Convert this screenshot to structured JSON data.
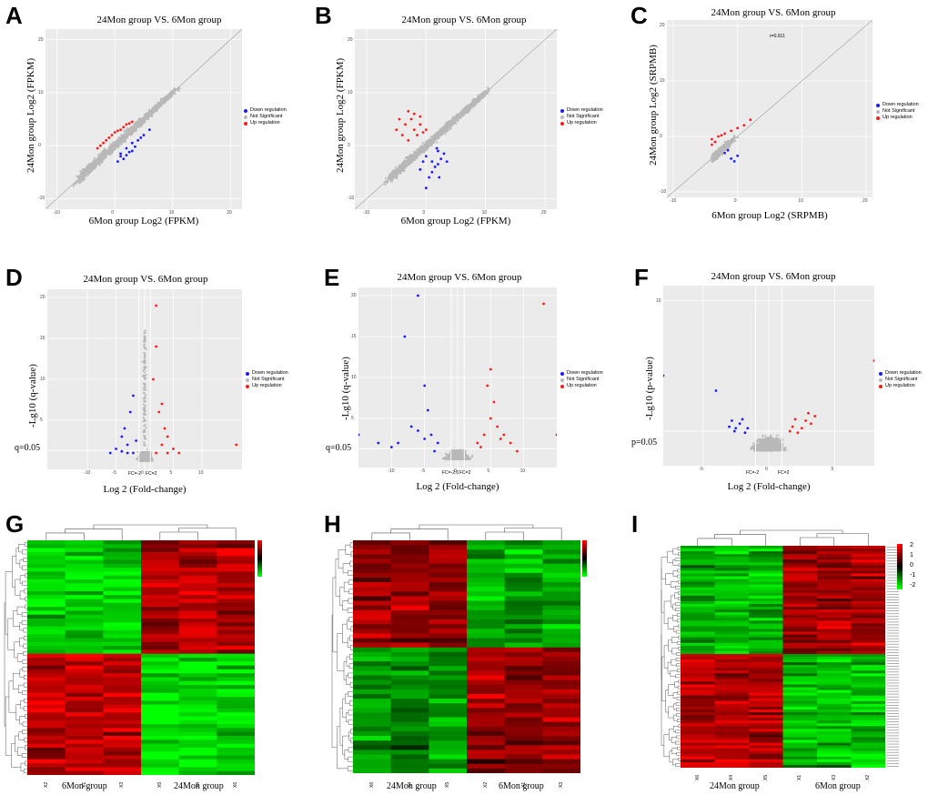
{
  "panels": {
    "A": {
      "label": "A",
      "title": "24Mon group VS. 6Mon group",
      "xlabel": "6Mon group Log2 (FPKM)",
      "ylabel": "24Mon group Log2 (FPKM)"
    },
    "B": {
      "label": "B",
      "title": "24Mon group VS. 6Mon group",
      "xlabel": "6Mon group Log2 (FPKM)",
      "ylabel": "24Mon group Log2 (FPKM)"
    },
    "C": {
      "label": "C",
      "title": "24Mon group VS. 6Mon group",
      "xlabel": "6Mon group Log2 (SRPMB)",
      "ylabel": "24Mon group Log2 (SRPMB)",
      "annotation": "r=0.911"
    },
    "D": {
      "label": "D",
      "title": "24Mon group VS. 6Mon group",
      "xlabel": "Log 2 (Fold-change)",
      "ylabel": "-Lg10 (q-value)",
      "threshold": "q=0.05",
      "fc_left": "FC=-2",
      "fc_right": "FC=2"
    },
    "E": {
      "label": "E",
      "title": "24Mon group VS. 6Mon group",
      "xlabel": "Log 2 (Fold-change)",
      "ylabel": "-Lg10 (q-value)",
      "threshold": "q=0.05",
      "fc_left": "FC=-2.0",
      "fc_right": "FC=2"
    },
    "F": {
      "label": "F",
      "title": "24Mon group VS. 6Mon group",
      "xlabel": "Log 2 (Fold-change)",
      "ylabel": "-Lg10 (p-value)",
      "threshold": "p=0.05",
      "fc_left": "FC=-2",
      "fc_right": "FC=2"
    },
    "G": {
      "label": "G",
      "group_left": "6Mon group",
      "group_right": "24Mon group",
      "samples": [
        "X2",
        "X1",
        "X3",
        "X5",
        "X4",
        "X6"
      ]
    },
    "H": {
      "label": "H",
      "group_left": "24Mon group",
      "group_right": "6Mon group",
      "samples": [
        "X6",
        "X4",
        "X5",
        "X2",
        "X1",
        "X3"
      ]
    },
    "I": {
      "label": "I",
      "group_left": "24Mon group",
      "group_right": "6Mon group",
      "samples": [
        "X6",
        "X4",
        "X5",
        "X1",
        "X3",
        "X2"
      ]
    }
  },
  "legend": {
    "down": "Down regulation",
    "ns": "Not Significant",
    "up": "Up regulation"
  },
  "colors": {
    "down": "#1a1aff",
    "ns": "#b8b8b8",
    "up": "#ff1a1a",
    "panel_bg": "#ebebeb",
    "grid": "#ffffff"
  },
  "chart_data": [
    {
      "id": "A",
      "type": "scatter",
      "title": "24Mon group VS. 6Mon group",
      "xlabel": "6Mon group Log2 (FPKM)",
      "ylabel": "24Mon group Log2 (FPKM)",
      "xlim": [
        -12,
        22
      ],
      "ylim": [
        -12,
        22
      ],
      "xticks": [
        -10,
        0,
        10,
        20
      ],
      "yticks": [
        -10,
        0,
        10,
        20
      ],
      "series": [
        {
          "name": "Down regulation",
          "points": [
            [
              1,
              -1.5
            ],
            [
              2,
              -0.5
            ],
            [
              3,
              0.5
            ],
            [
              2.5,
              -1.2
            ],
            [
              4,
              1
            ],
            [
              5,
              2
            ],
            [
              1.5,
              -2.5
            ],
            [
              3.5,
              -0.2
            ],
            [
              4.5,
              1.5
            ],
            [
              0.5,
              -3
            ],
            [
              2,
              -1.8
            ],
            [
              6,
              3
            ],
            [
              3,
              -1
            ],
            [
              1,
              -2
            ]
          ]
        },
        {
          "name": "Not Significant",
          "density": "diagonal cloud"
        },
        {
          "name": "Up regulation",
          "points": [
            [
              -2,
              0.5
            ],
            [
              -1,
              1.5
            ],
            [
              0,
              2.5
            ],
            [
              1,
              3
            ],
            [
              2,
              4
            ],
            [
              -3,
              -0.5
            ],
            [
              -0.5,
              2
            ],
            [
              0.5,
              2.8
            ],
            [
              3,
              4.5
            ],
            [
              -1.5,
              1
            ],
            [
              1.5,
              3.5
            ],
            [
              -2.5,
              0
            ],
            [
              2.5,
              4.2
            ]
          ]
        }
      ]
    },
    {
      "id": "B",
      "type": "scatter",
      "title": "24Mon group VS. 6Mon group",
      "xlabel": "6Mon group Log2 (FPKM)",
      "ylabel": "24Mon group Log2 (FPKM)",
      "xlim": [
        -12,
        22
      ],
      "ylim": [
        -12,
        22
      ],
      "xticks": [
        -10,
        0,
        10,
        20
      ],
      "yticks": [
        -10,
        0,
        10,
        20
      ],
      "series": [
        {
          "name": "Down regulation",
          "points": [
            [
              0,
              -2
            ],
            [
              1,
              -3
            ],
            [
              2,
              -1
            ],
            [
              1.5,
              -4
            ],
            [
              0.5,
              -6
            ],
            [
              2.5,
              -2.5
            ],
            [
              3,
              -1.5
            ],
            [
              -0.5,
              -3
            ],
            [
              1,
              -5
            ],
            [
              2,
              -3.5
            ],
            [
              0,
              -8
            ],
            [
              1.8,
              -0.5
            ],
            [
              3.5,
              -3
            ],
            [
              -1,
              -4.5
            ],
            [
              2.2,
              -6
            ]
          ]
        },
        {
          "name": "Not Significant",
          "density": "diagonal cloud"
        },
        {
          "name": "Up regulation",
          "points": [
            [
              -3,
              1
            ],
            [
              -2,
              3
            ],
            [
              -1,
              4
            ],
            [
              -4,
              2
            ],
            [
              -2.5,
              5
            ],
            [
              -1.5,
              2
            ],
            [
              -3.5,
              4
            ],
            [
              0,
              3
            ],
            [
              -2,
              6
            ],
            [
              -5,
              3
            ],
            [
              -1,
              5.5
            ],
            [
              -0.5,
              2.5
            ],
            [
              -3,
              6.5
            ],
            [
              -4.5,
              5
            ]
          ]
        }
      ]
    },
    {
      "id": "C",
      "type": "scatter",
      "title": "24Mon group VS. 6Mon group",
      "xlabel": "6Mon group Log2 (SRPMB)",
      "ylabel": "24Mon group Log2 (SRPMB)",
      "xlim": [
        -11,
        21
      ],
      "ylim": [
        -11,
        21
      ],
      "xticks": [
        -10,
        0,
        10,
        20
      ],
      "yticks": [
        -10,
        0,
        10,
        20
      ],
      "series": [
        {
          "name": "Down regulation",
          "points": [
            [
              -2,
              -3
            ],
            [
              -1,
              -4
            ],
            [
              0,
              -3.5
            ],
            [
              -1.5,
              -2.5
            ],
            [
              -0.5,
              -4.5
            ]
          ]
        },
        {
          "name": "Not Significant",
          "density": "diagonal cloud"
        },
        {
          "name": "Up regulation",
          "points": [
            [
              -4,
              -0.5
            ],
            [
              -3,
              0
            ],
            [
              -2,
              0.5
            ],
            [
              -3.5,
              -1
            ],
            [
              -1,
              1
            ],
            [
              0,
              1.5
            ],
            [
              1,
              2
            ],
            [
              -4,
              -1.5
            ],
            [
              -2.5,
              0.2
            ],
            [
              2,
              3
            ]
          ]
        }
      ]
    },
    {
      "id": "D",
      "type": "scatter",
      "title": "24Mon group VS. 6Mon group",
      "xlabel": "Log 2 (Fold-change)",
      "ylabel": "-Lg10 (q-value)",
      "xlim": [
        -17,
        17
      ],
      "ylim": [
        -1,
        21
      ],
      "xticks": [
        -10,
        -5,
        0,
        5,
        10
      ],
      "yticks": [
        5,
        10,
        15,
        20
      ],
      "series": [
        {
          "name": "Down regulation",
          "points": [
            [
              -2,
              1
            ],
            [
              -3,
              2
            ],
            [
              -4,
              3
            ],
            [
              -2.5,
              6
            ],
            [
              -3.5,
              4
            ],
            [
              -2,
              8
            ],
            [
              -5,
              1.5
            ],
            [
              -1.5,
              2.5
            ],
            [
              -3,
              1
            ],
            [
              -4,
              1.2
            ],
            [
              -6,
              1
            ]
          ]
        },
        {
          "name": "Not Significant",
          "density": "volcano cloud"
        },
        {
          "name": "Up regulation",
          "points": [
            [
              2,
              1
            ],
            [
              3,
              2
            ],
            [
              4,
              3
            ],
            [
              2.5,
              6
            ],
            [
              3.5,
              4
            ],
            [
              2,
              19
            ],
            [
              1.5,
              10
            ],
            [
              3,
              7
            ],
            [
              2,
              14
            ],
            [
              5,
              1.5
            ],
            [
              4,
              1
            ],
            [
              6,
              1
            ],
            [
              16,
              2
            ]
          ]
        }
      ]
    },
    {
      "id": "E",
      "type": "scatter",
      "title": "24Mon group VS. 6Mon group",
      "xlabel": "Log 2 (Fold-change)",
      "ylabel": "-Lg10 (q-value)",
      "xlim": [
        -15,
        15
      ],
      "ylim": [
        -1,
        21
      ],
      "xticks": [
        -10,
        -5,
        0,
        5,
        10
      ],
      "yticks": [
        5,
        10,
        15,
        20
      ],
      "series": [
        {
          "name": "Down regulation",
          "points": [
            [
              -6,
              20
            ],
            [
              -8,
              15
            ],
            [
              -5,
              9
            ],
            [
              -4,
              3
            ],
            [
              -6,
              3.5
            ],
            [
              -5,
              2.5
            ],
            [
              -3,
              2
            ],
            [
              -7,
              4
            ],
            [
              -9,
              2
            ],
            [
              -10,
              1.5
            ],
            [
              -4.5,
              6
            ],
            [
              -3.5,
              1
            ],
            [
              -12,
              2
            ],
            [
              -15,
              3
            ]
          ]
        },
        {
          "name": "Not Significant",
          "density": "volcano cloud"
        },
        {
          "name": "Up regulation",
          "points": [
            [
              4,
              3
            ],
            [
              5,
              5
            ],
            [
              6,
              4
            ],
            [
              4.5,
              9
            ],
            [
              5.5,
              7
            ],
            [
              3,
              2
            ],
            [
              7,
              3
            ],
            [
              8,
              2
            ],
            [
              6.5,
              2.5
            ],
            [
              3.5,
              1.5
            ],
            [
              9,
              1
            ],
            [
              13,
              19
            ],
            [
              15,
              3
            ],
            [
              5,
              11
            ]
          ]
        }
      ]
    },
    {
      "id": "F",
      "type": "scatter",
      "title": "24Mon group VS. 6Mon group",
      "xlabel": "Log 2 (Fold-change)",
      "ylabel": "-Lg10 (p-value)",
      "xlim": [
        -8,
        8
      ],
      "ylim": [
        -1,
        11
      ],
      "xticks": [
        -5,
        0,
        5
      ],
      "yticks": [
        10
      ],
      "series": [
        {
          "name": "Down regulation",
          "points": [
            [
              -4,
              4
            ],
            [
              -2.5,
              1.5
            ],
            [
              -2.8,
              2
            ],
            [
              -2.2,
              1.8
            ],
            [
              -1.8,
              1.2
            ],
            [
              -2.6,
              1.3
            ],
            [
              -2.0,
              2.1
            ],
            [
              -3,
              1.6
            ],
            [
              -1.6,
              1.5
            ],
            [
              -8,
              5
            ]
          ]
        },
        {
          "name": "Not Significant",
          "density": "volcano cloud"
        },
        {
          "name": "Up regulation",
          "points": [
            [
              2.5,
              1.5
            ],
            [
              2.8,
              2
            ],
            [
              3,
              2.5
            ],
            [
              3.2,
              1.8
            ],
            [
              2.2,
              1.2
            ],
            [
              1.8,
              1.6
            ],
            [
              3.5,
              2.3
            ],
            [
              2,
              2.1
            ],
            [
              1.6,
              1.3
            ],
            [
              8,
              6
            ]
          ]
        }
      ]
    },
    {
      "id": "G",
      "type": "heatmap",
      "xlabel": "6Mon group / 24Mon group",
      "colorscale": [
        "#00ff00",
        "#000000",
        "#ff0000"
      ],
      "clim": [
        -2,
        2
      ],
      "samples": [
        "X2",
        "X1",
        "X3",
        "X5",
        "X4",
        "X6"
      ],
      "rows": 60
    },
    {
      "id": "H",
      "type": "heatmap",
      "xlabel": "24Mon group / 6Mon group",
      "colorscale": [
        "#00ff00",
        "#000000",
        "#ff0000"
      ],
      "clim": [
        -2,
        2
      ],
      "samples": [
        "X6",
        "X4",
        "X5",
        "X2",
        "X1",
        "X3"
      ],
      "rows": 50
    },
    {
      "id": "I",
      "type": "heatmap",
      "xlabel": "24Mon group / 6Mon group",
      "colorscale": [
        "#00ff00",
        "#000000",
        "#ff0000"
      ],
      "clim": [
        -2,
        2
      ],
      "colorbar_ticks": [
        "2",
        "1",
        "0",
        "-1",
        "-2"
      ],
      "samples": [
        "X6",
        "X4",
        "X5",
        "X1",
        "X3",
        "X2"
      ],
      "rows": 80
    }
  ]
}
